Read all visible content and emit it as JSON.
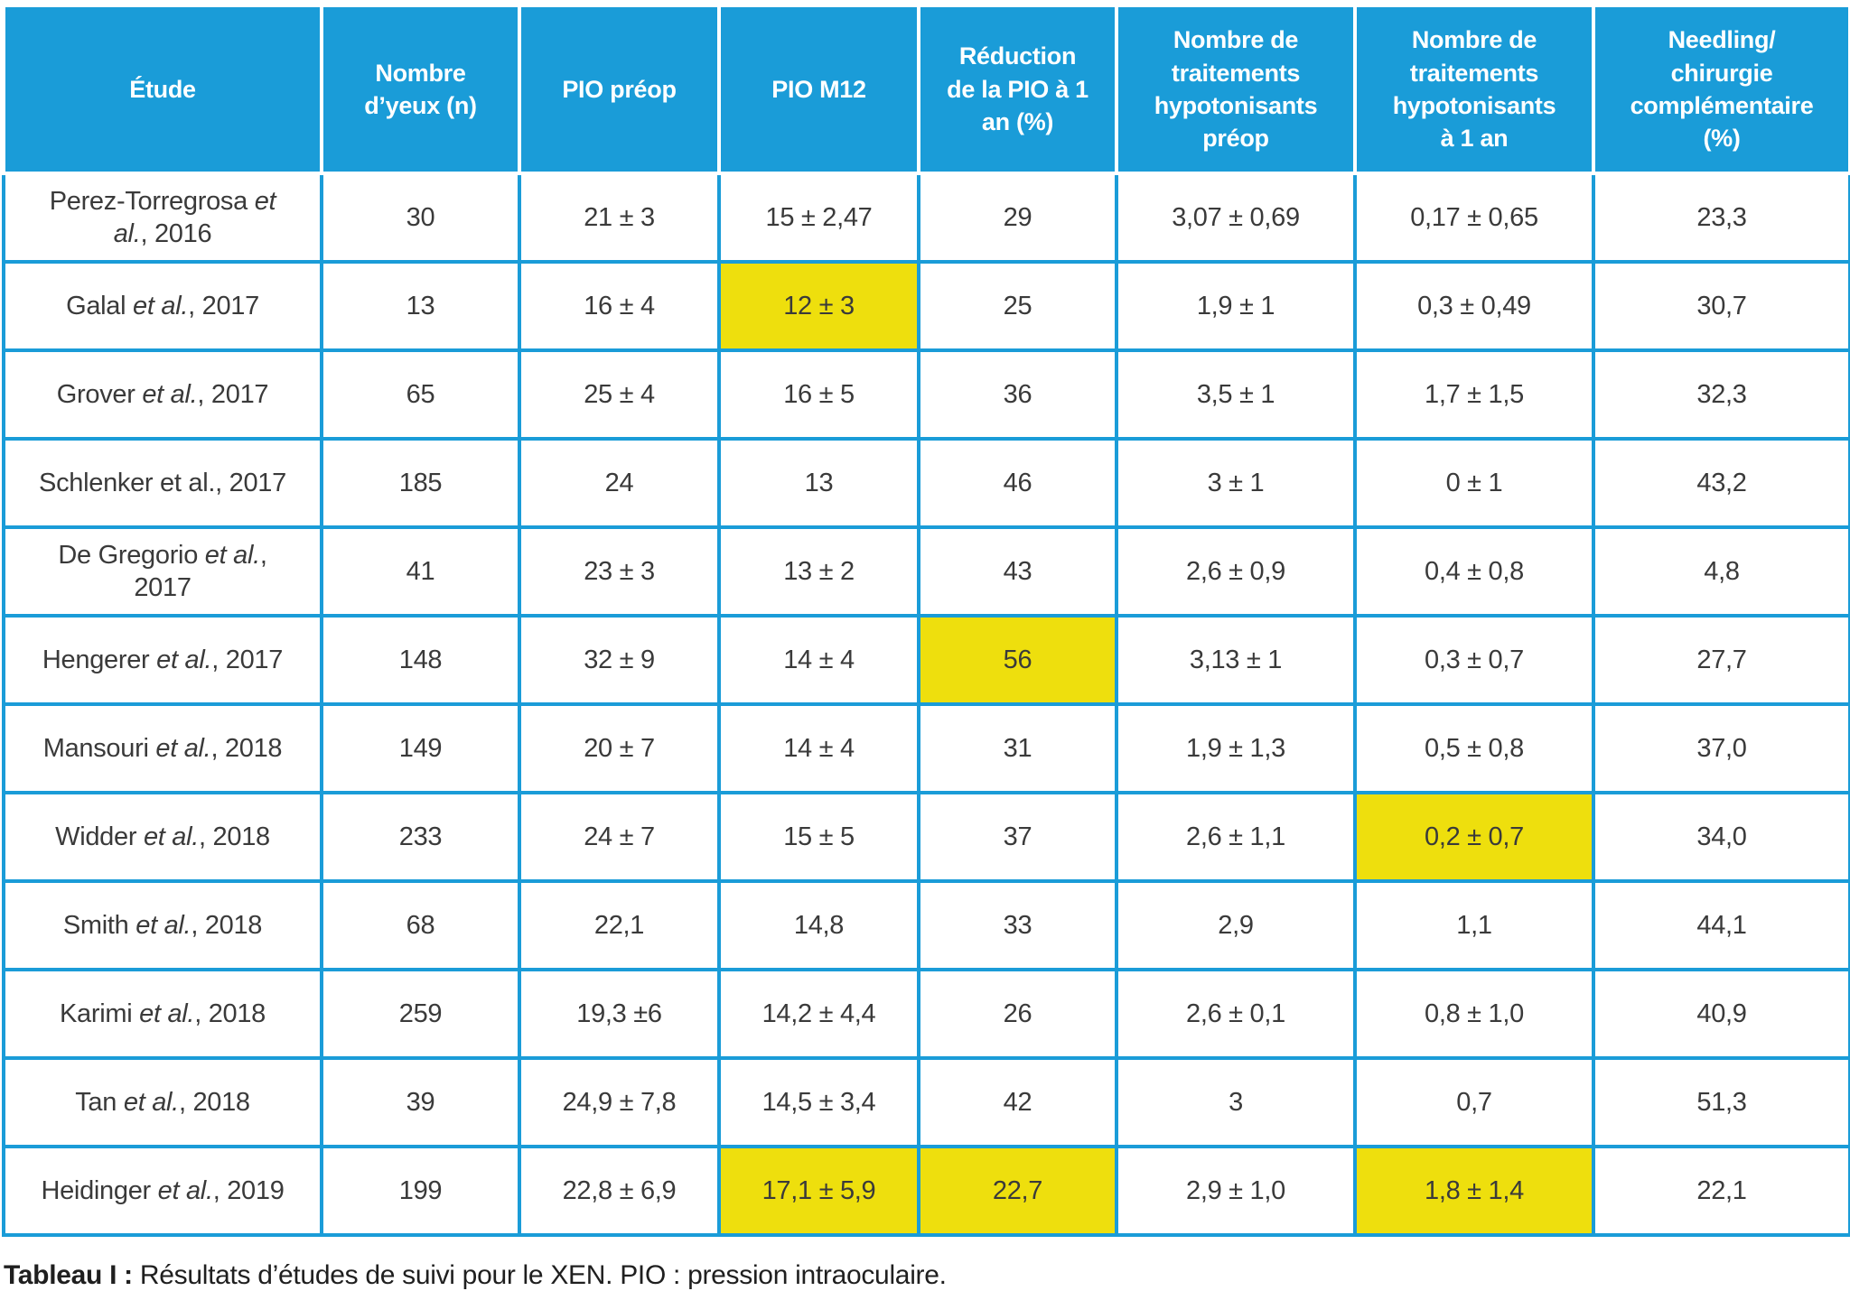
{
  "colors": {
    "header_blue": "#1a9cd8",
    "highlight_yellow": "#eedf0d",
    "body_text": "#3a3a3a"
  },
  "table": {
    "columns": [
      "Étude",
      "Nombre\nd’yeux (n)",
      "PIO préop",
      "PIO M12",
      "Réduction\nde la PIO à 1\nan (%)",
      "Nombre de\ntraitements\nhypotonisants\npréop",
      "Nombre de\ntraitements\nhypotonisants\nà 1 an",
      "Needling/\nchirurgie\ncomplémentaire\n(%)"
    ],
    "rows": [
      {
        "study": {
          "prefix": "Perez-Torregrosa ",
          "italic": "et al.",
          "suffix": ", 2016"
        },
        "values": [
          "30",
          "21 ± 3",
          "15 ± 2,47",
          "29",
          "3,07 ± 0,69",
          "0,17 ± 0,65",
          "23,3"
        ],
        "highlights": []
      },
      {
        "study": {
          "prefix": "Galal ",
          "italic": "et al.",
          "suffix": ", 2017"
        },
        "values": [
          "13",
          "16 ± 4",
          "12 ± 3",
          "25",
          "1,9 ± 1",
          "0,3 ± 0,49",
          "30,7"
        ],
        "highlights": [
          2
        ]
      },
      {
        "study": {
          "prefix": "Grover ",
          "italic": "et al.",
          "suffix": ", 2017"
        },
        "values": [
          "65",
          "25 ± 4",
          "16 ± 5",
          "36",
          "3,5 ± 1",
          "1,7 ± 1,5",
          "32,3"
        ],
        "highlights": []
      },
      {
        "study": {
          "prefix": "Schlenker et al., 2017",
          "italic": "",
          "suffix": ""
        },
        "values": [
          "185",
          "24",
          "13",
          "46",
          "3 ± 1",
          "0 ± 1",
          "43,2"
        ],
        "highlights": []
      },
      {
        "study": {
          "prefix": "De Gregorio ",
          "italic": "et al.",
          "suffix": ", 2017"
        },
        "values": [
          "41",
          "23 ± 3",
          "13 ± 2",
          "43",
          "2,6 ± 0,9",
          "0,4 ± 0,8",
          "4,8"
        ],
        "highlights": []
      },
      {
        "study": {
          "prefix": "Hengerer ",
          "italic": "et al.",
          "suffix": ", 2017"
        },
        "values": [
          "148",
          "32 ± 9",
          "14 ± 4",
          "56",
          "3,13 ± 1",
          "0,3 ± 0,7",
          "27,7"
        ],
        "highlights": [
          3
        ]
      },
      {
        "study": {
          "prefix": "Mansouri ",
          "italic": "et al.",
          "suffix": ", 2018"
        },
        "values": [
          "149",
          "20 ± 7",
          "14 ± 4",
          "31",
          "1,9 ± 1,3",
          "0,5 ± 0,8",
          "37,0"
        ],
        "highlights": []
      },
      {
        "study": {
          "prefix": "Widder ",
          "italic": "et al.",
          "suffix": ", 2018"
        },
        "values": [
          "233",
          "24 ± 7",
          "15 ± 5",
          "37",
          "2,6 ± 1,1",
          "0,2 ± 0,7",
          "34,0"
        ],
        "highlights": [
          5
        ]
      },
      {
        "study": {
          "prefix": "Smith ",
          "italic": "et al.",
          "suffix": ", 2018"
        },
        "values": [
          "68",
          "22,1",
          "14,8",
          "33",
          "2,9",
          "1,1",
          "44,1"
        ],
        "highlights": []
      },
      {
        "study": {
          "prefix": "Karimi ",
          "italic": "et al.",
          "suffix": ", 2018"
        },
        "values": [
          "259",
          "19,3 ±6",
          "14,2 ± 4,4",
          "26",
          "2,6 ± 0,1",
          "0,8 ± 1,0",
          "40,9"
        ],
        "highlights": []
      },
      {
        "study": {
          "prefix": "Tan ",
          "italic": "et al.",
          "suffix": ", 2018"
        },
        "values": [
          "39",
          "24,9 ± 7,8",
          "14,5 ± 3,4",
          "42",
          "3",
          "0,7",
          "51,3"
        ],
        "highlights": []
      },
      {
        "study": {
          "prefix": "Heidinger ",
          "italic": "et al.",
          "suffix": ", 2019"
        },
        "values": [
          "199",
          "22,8 ± 6,9",
          "17,1 ± 5,9",
          "22,7",
          "2,9 ± 1,0",
          "1,8 ± 1,4",
          "22,1"
        ],
        "highlights": [
          2,
          3,
          5
        ]
      }
    ]
  },
  "caption": {
    "label": "Tableau I :",
    "text": " Résultats d’études de suivi pour le XEN. PIO : pression intraoculaire."
  }
}
